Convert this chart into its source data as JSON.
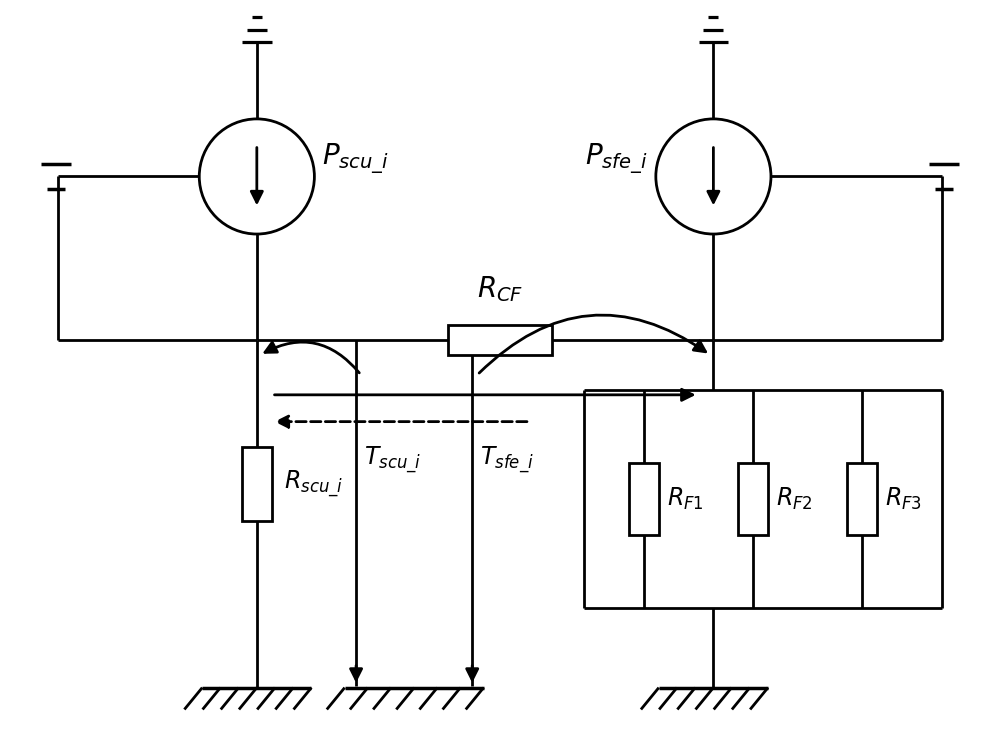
{
  "bg_color": "#ffffff",
  "line_color": "#000000",
  "lw": 2.0,
  "fig_width": 10.0,
  "fig_height": 7.45,
  "labels": {
    "P_scu_i": "$P_{scu\\_i}$",
    "P_sfe_i": "$P_{sfe\\_i}$",
    "R_CF": "$R_{CF}$",
    "R_scu_i": "$R_{scu\\_i}$",
    "T_scu_i": "$T_{scu\\_i}$",
    "T_sfe_i": "$T_{sfe\\_i}$",
    "R_F1": "$R_{F1}$",
    "R_F2": "$R_{F2}$",
    "R_F3": "$R_{F3}$"
  },
  "label_fontsize": 17
}
